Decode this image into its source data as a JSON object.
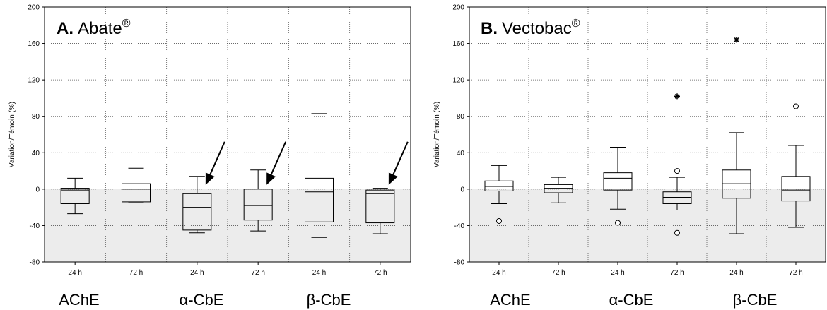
{
  "figure": {
    "colors": {
      "negative_zone": "#ececec",
      "grid": "#555555",
      "frame": "#000000",
      "box_stroke": "#000000",
      "arrow": "#000000"
    }
  },
  "chart_data": [
    {
      "type": "boxplot",
      "panel_letter": "A.",
      "panel_name": "Abate",
      "panel_mark": "®",
      "ylabel": "Variation/Témoin (%)",
      "ylim": [
        -80,
        200
      ],
      "yticks": [
        -80,
        -40,
        0,
        40,
        80,
        120,
        160,
        200
      ],
      "grid": "dotted",
      "shaded_range": [
        -80,
        0
      ],
      "categories": [
        "24 h",
        "72 h",
        "24 h",
        "72 h",
        "24 h",
        "72 h"
      ],
      "groups": [
        "AChE",
        "α-CbE",
        "β-CbE"
      ],
      "boxes": [
        {
          "min": -27,
          "q1": -16,
          "median": -1,
          "q3": 1,
          "max": 12
        },
        {
          "min": -15,
          "q1": -14,
          "median": 0,
          "q3": 6,
          "max": 23
        },
        {
          "min": -48,
          "q1": -45,
          "median": -20,
          "q3": -5,
          "max": 14
        },
        {
          "min": -46,
          "q1": -34,
          "median": -18,
          "q3": 0,
          "max": 21
        },
        {
          "min": -53,
          "q1": -36,
          "median": -3,
          "q3": 12,
          "max": 83
        },
        {
          "min": -49,
          "q1": -37,
          "median": -5,
          "q3": -1,
          "max": 1
        }
      ],
      "outliers": [],
      "extremes": [],
      "arrows_at": [
        "α-CbE 24 h",
        "α-CbE 72 h",
        "β-CbE 72 h"
      ]
    },
    {
      "type": "boxplot",
      "panel_letter": "B.",
      "panel_name": "Vectobac",
      "panel_mark": "®",
      "ylabel": "Variation/Témoin (%)",
      "ylim": [
        -80,
        200
      ],
      "yticks": [
        -80,
        -40,
        0,
        40,
        80,
        120,
        160,
        200
      ],
      "grid": "dotted",
      "shaded_range": [
        -80,
        0
      ],
      "categories": [
        "24 h",
        "72 h",
        "24 h",
        "72 h",
        "24 h",
        "72 h"
      ],
      "groups": [
        "AChE",
        "α-CbE",
        "β-CbE"
      ],
      "boxes": [
        {
          "min": -16,
          "q1": -2,
          "median": 3,
          "q3": 9,
          "max": 26
        },
        {
          "min": -15,
          "q1": -4,
          "median": 1,
          "q3": 5,
          "max": 13
        },
        {
          "min": -22,
          "q1": -1,
          "median": 12,
          "q3": 18,
          "max": 46
        },
        {
          "min": -23,
          "q1": -16,
          "median": -9,
          "q3": -3,
          "max": 13
        },
        {
          "min": -49,
          "q1": -10,
          "median": 6,
          "q3": 21,
          "max": 62
        },
        {
          "min": -42,
          "q1": -13,
          "median": -1,
          "q3": 14,
          "max": 48
        }
      ],
      "outliers": [
        {
          "box": 0,
          "value": -35
        },
        {
          "box": 2,
          "value": -37
        },
        {
          "box": 3,
          "value": 20
        },
        {
          "box": 3,
          "value": -48
        },
        {
          "box": 5,
          "value": 91
        }
      ],
      "extremes": [
        {
          "box": 3,
          "value": 102
        },
        {
          "box": 4,
          "value": 164
        }
      ],
      "arrows_at": []
    }
  ]
}
